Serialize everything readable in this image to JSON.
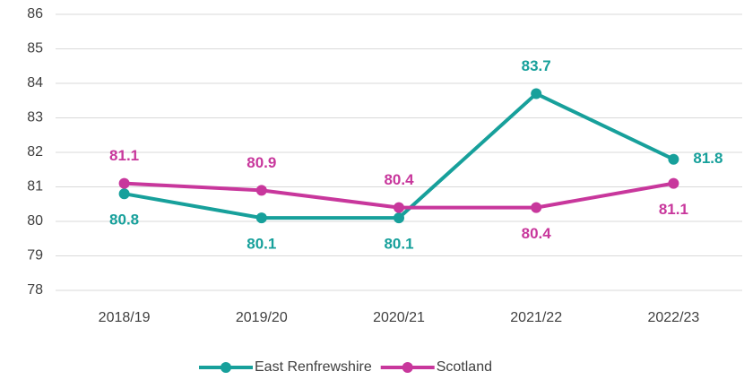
{
  "chart_data": {
    "type": "line",
    "categories": [
      "2018/19",
      "2019/20",
      "2020/21",
      "2021/22",
      "2022/23"
    ],
    "series": [
      {
        "name": "East Renfrewshire",
        "color": "#17a09b",
        "values": [
          80.8,
          80.1,
          80.1,
          83.7,
          81.8
        ]
      },
      {
        "name": "Scotland",
        "color": "#c8379c",
        "values": [
          81.1,
          80.9,
          80.4,
          80.4,
          81.1
        ]
      }
    ],
    "ylim": [
      78,
      86
    ],
    "yticks": [
      78,
      79,
      80,
      81,
      82,
      83,
      84,
      85,
      86
    ],
    "grid": true,
    "legend": "bottom"
  }
}
